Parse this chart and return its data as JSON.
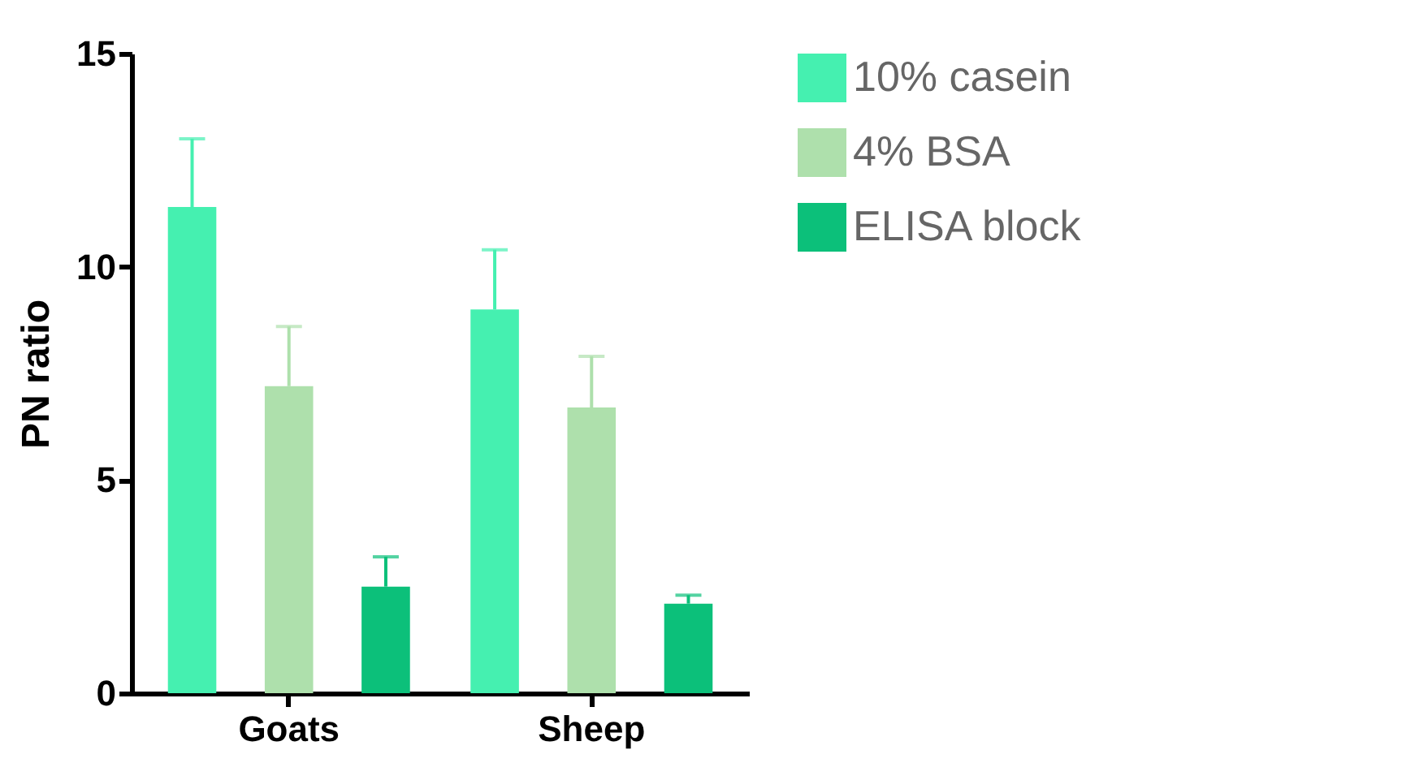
{
  "chart_data": {
    "type": "bar",
    "ylabel": "PN ratio",
    "categories": [
      "Goats",
      "Sheep"
    ],
    "series": [
      {
        "name": "10% casein",
        "color": "#45f0b0",
        "values": [
          11.4,
          9.0
        ],
        "errors": [
          [
            11.4,
            13.0
          ],
          [
            9.0,
            10.4
          ]
        ]
      },
      {
        "name": "4% BSA",
        "color": "#aee0ac",
        "values": [
          7.2,
          6.7
        ],
        "errors": [
          [
            7.2,
            8.6
          ],
          [
            6.7,
            7.9
          ]
        ]
      },
      {
        "name": "ELISA block",
        "color": "#0cc07a",
        "values": [
          2.5,
          2.1
        ],
        "errors": [
          [
            2.5,
            3.2
          ],
          [
            2.1,
            2.3
          ]
        ]
      }
    ],
    "ylim": [
      0,
      15
    ],
    "yticks": [
      0,
      5,
      10,
      15
    ],
    "grid": false,
    "legend": "right"
  }
}
